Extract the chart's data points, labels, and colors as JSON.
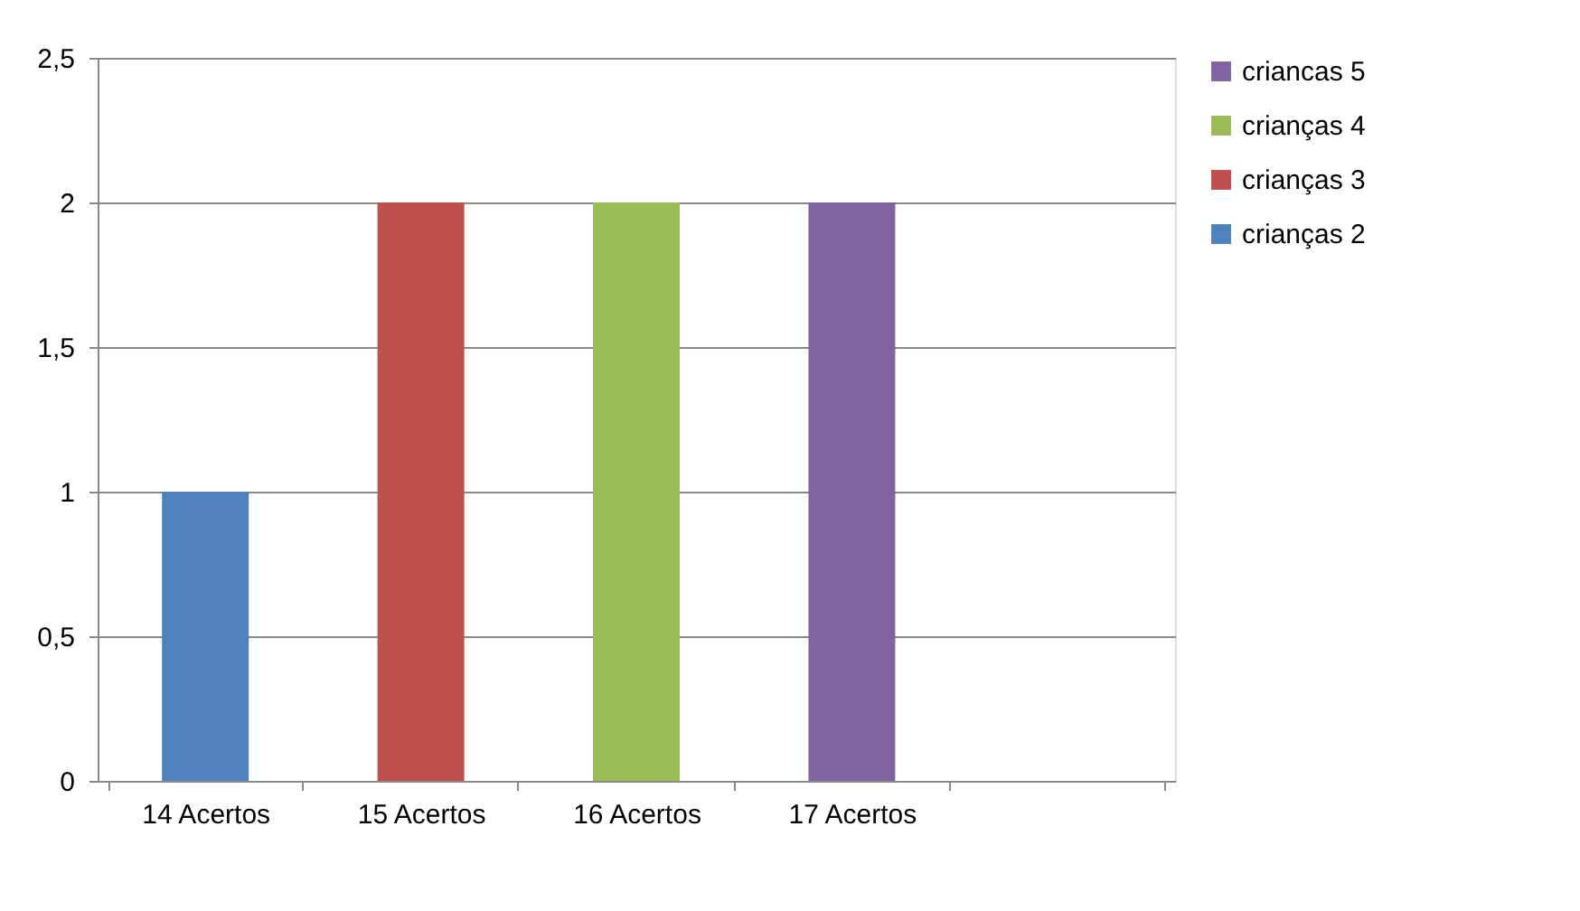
{
  "chart_data": {
    "type": "bar",
    "stacked": true,
    "categories": [
      "14 Acertos",
      "15 Acertos",
      "16 Acertos",
      "17 Acertos",
      null
    ],
    "series": [
      {
        "name": " crianças 2",
        "color": "#4f81bd",
        "values": [
          1,
          null,
          null,
          null,
          null
        ]
      },
      {
        "name": "crianças 3",
        "color": "#c0504d",
        "values": [
          null,
          2,
          null,
          null,
          null
        ]
      },
      {
        "name": "crianças 4",
        "color": "#9bbb59",
        "values": [
          null,
          null,
          2,
          null,
          null
        ]
      },
      {
        "name": "criancas 5",
        "color": "#8064a2",
        "values": [
          null,
          null,
          null,
          2,
          null
        ]
      }
    ],
    "ylim": [
      0,
      2.5
    ],
    "yticks": [
      0,
      {
        "value": 0.5,
        "label": "0,5"
      },
      1,
      {
        "value": 1.5,
        "label": "1,5"
      },
      2,
      {
        "value": 2.5,
        "label": "2,5"
      }
    ],
    "grid": "y",
    "legend": "right"
  }
}
